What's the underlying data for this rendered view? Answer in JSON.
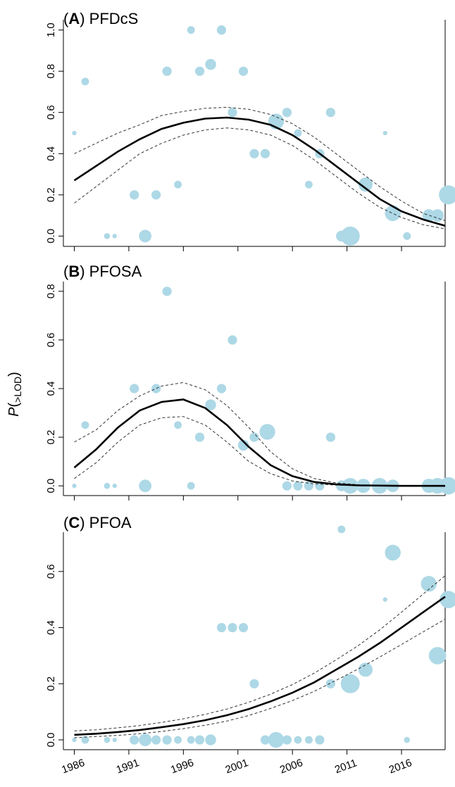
{
  "style": {
    "point_color": "#add8e6",
    "curve_color": "#000000",
    "ci_color": "#333333"
  },
  "shared_ylabel": {
    "main": "P",
    "open": "(",
    "sub": ">LOD",
    "close": ")"
  },
  "chart_data": [
    {
      "type": "scatter",
      "panel_letter": "A",
      "title": "PFDcS",
      "xlim": [
        1985,
        2020
      ],
      "ylim": [
        -0.05,
        1.05
      ],
      "x_ticks": [
        1986,
        1991,
        1996,
        2001,
        2006,
        2011,
        2016
      ],
      "x_tick_labels_shown": false,
      "y_ticks": [
        0.0,
        0.2,
        0.4,
        0.6,
        0.8,
        1.0
      ],
      "y_tick_labels": [
        "0.0",
        "0.2",
        "0.4",
        "0.6",
        "0.8",
        "1.0"
      ],
      "points": [
        {
          "x": 1986,
          "y": 0.5,
          "size": 1
        },
        {
          "x": 1987,
          "y": 0.75,
          "size": 3
        },
        {
          "x": 1989,
          "y": 0.0,
          "size": 2
        },
        {
          "x": 1989.7,
          "y": 0.0,
          "size": 1
        },
        {
          "x": 1991.5,
          "y": 0.2,
          "size": 4
        },
        {
          "x": 1992.5,
          "y": 0.0,
          "size": 6
        },
        {
          "x": 1993.5,
          "y": 0.2,
          "size": 4
        },
        {
          "x": 1994.5,
          "y": 0.8,
          "size": 4
        },
        {
          "x": 1995.5,
          "y": 0.25,
          "size": 3
        },
        {
          "x": 1996.7,
          "y": 1.0,
          "size": 3
        },
        {
          "x": 1997.5,
          "y": 0.8,
          "size": 4
        },
        {
          "x": 1998.5,
          "y": 0.833,
          "size": 5
        },
        {
          "x": 1999.5,
          "y": 1.0,
          "size": 4
        },
        {
          "x": 2000.5,
          "y": 0.6,
          "size": 4
        },
        {
          "x": 2001.5,
          "y": 0.8,
          "size": 4
        },
        {
          "x": 2002.5,
          "y": 0.4,
          "size": 4
        },
        {
          "x": 2003.5,
          "y": 0.4,
          "size": 4
        },
        {
          "x": 2004.5,
          "y": 0.556,
          "size": 8
        },
        {
          "x": 2005.5,
          "y": 0.6,
          "size": 4
        },
        {
          "x": 2006.5,
          "y": 0.5,
          "size": 3
        },
        {
          "x": 2007.5,
          "y": 0.25,
          "size": 3
        },
        {
          "x": 2008.5,
          "y": 0.4,
          "size": 4
        },
        {
          "x": 2009.5,
          "y": 0.6,
          "size": 4
        },
        {
          "x": 2010.5,
          "y": 0.0,
          "size": 5
        },
        {
          "x": 2011.3,
          "y": 0.0,
          "size": 10
        },
        {
          "x": 2012.7,
          "y": 0.25,
          "size": 7
        },
        {
          "x": 2014.5,
          "y": 0.5,
          "size": 1
        },
        {
          "x": 2015.2,
          "y": 0.111,
          "size": 8
        },
        {
          "x": 2016.5,
          "y": 0.0,
          "size": 3
        },
        {
          "x": 2018.5,
          "y": 0.1,
          "size": 6
        },
        {
          "x": 2019.3,
          "y": 0.1,
          "size": 6
        },
        {
          "x": 2020.3,
          "y": 0.2,
          "size": 10
        }
      ],
      "fit": {
        "x": [
          1986,
          1988,
          1990,
          1992,
          1994,
          1996,
          1998,
          2000,
          2002,
          2004,
          2006,
          2008,
          2010,
          2012,
          2014,
          2016,
          2018,
          2020
        ],
        "y": [
          0.27,
          0.34,
          0.41,
          0.47,
          0.52,
          0.55,
          0.57,
          0.575,
          0.565,
          0.54,
          0.49,
          0.42,
          0.34,
          0.26,
          0.18,
          0.12,
          0.08,
          0.05
        ],
        "lower": [
          0.16,
          0.24,
          0.32,
          0.4,
          0.45,
          0.49,
          0.515,
          0.525,
          0.515,
          0.49,
          0.44,
          0.37,
          0.29,
          0.21,
          0.14,
          0.09,
          0.055,
          0.035
        ],
        "upper": [
          0.4,
          0.45,
          0.5,
          0.54,
          0.585,
          0.605,
          0.62,
          0.625,
          0.615,
          0.59,
          0.545,
          0.48,
          0.4,
          0.32,
          0.24,
          0.17,
          0.11,
          0.075
        ]
      }
    },
    {
      "type": "scatter",
      "panel_letter": "B",
      "title": "PFOSA",
      "xlim": [
        1985,
        2020
      ],
      "ylim": [
        -0.04,
        0.84
      ],
      "x_ticks": [
        1986,
        1991,
        1996,
        2001,
        2006,
        2011,
        2016
      ],
      "x_tick_labels_shown": false,
      "y_ticks": [
        0.0,
        0.2,
        0.4,
        0.6,
        0.8
      ],
      "y_tick_labels": [
        "0.0",
        "0.2",
        "0.4",
        "0.6",
        "0.8"
      ],
      "points": [
        {
          "x": 1986,
          "y": 0.0,
          "size": 1
        },
        {
          "x": 1987,
          "y": 0.25,
          "size": 3
        },
        {
          "x": 1989,
          "y": 0.0,
          "size": 2
        },
        {
          "x": 1989.7,
          "y": 0.0,
          "size": 1
        },
        {
          "x": 1991.5,
          "y": 0.4,
          "size": 4
        },
        {
          "x": 1992.5,
          "y": 0.0,
          "size": 6
        },
        {
          "x": 1993.5,
          "y": 0.4,
          "size": 4
        },
        {
          "x": 1994.5,
          "y": 0.8,
          "size": 4
        },
        {
          "x": 1995.5,
          "y": 0.25,
          "size": 3
        },
        {
          "x": 1996.7,
          "y": 0.0,
          "size": 3
        },
        {
          "x": 1997.5,
          "y": 0.2,
          "size": 4
        },
        {
          "x": 1998.5,
          "y": 0.333,
          "size": 5
        },
        {
          "x": 1999.5,
          "y": 0.4,
          "size": 4
        },
        {
          "x": 2000.5,
          "y": 0.6,
          "size": 4
        },
        {
          "x": 2001.5,
          "y": 0.167,
          "size": 5
        },
        {
          "x": 2002.5,
          "y": 0.2,
          "size": 4
        },
        {
          "x": 2003.7,
          "y": 0.222,
          "size": 8
        },
        {
          "x": 2005.5,
          "y": 0.0,
          "size": 4
        },
        {
          "x": 2006.5,
          "y": 0.0,
          "size": 4
        },
        {
          "x": 2007.5,
          "y": 0.0,
          "size": 4
        },
        {
          "x": 2008.5,
          "y": 0.0,
          "size": 4
        },
        {
          "x": 2009.5,
          "y": 0.2,
          "size": 4
        },
        {
          "x": 2010.5,
          "y": 0.0,
          "size": 5
        },
        {
          "x": 2011.3,
          "y": 0.0,
          "size": 8
        },
        {
          "x": 2012.5,
          "y": 0.0,
          "size": 7
        },
        {
          "x": 2014,
          "y": 0.0,
          "size": 8
        },
        {
          "x": 2015.2,
          "y": 0.0,
          "size": 6
        },
        {
          "x": 2018.5,
          "y": 0.0,
          "size": 7
        },
        {
          "x": 2019.3,
          "y": 0.0,
          "size": 8
        },
        {
          "x": 2020.3,
          "y": 0.0,
          "size": 9
        }
      ],
      "fit": {
        "x": [
          1986,
          1988,
          1990,
          1992,
          1994,
          1996,
          1998,
          2000,
          2002,
          2004,
          2006,
          2008,
          2010,
          2012,
          2014,
          2016,
          2018,
          2020
        ],
        "y": [
          0.075,
          0.15,
          0.24,
          0.31,
          0.345,
          0.355,
          0.32,
          0.25,
          0.16,
          0.085,
          0.04,
          0.016,
          0.006,
          0.002,
          0.001,
          0.0,
          0.0,
          0.0
        ],
        "lower": [
          0.03,
          0.095,
          0.18,
          0.25,
          0.28,
          0.285,
          0.25,
          0.18,
          0.1,
          0.05,
          0.02,
          0.008,
          0.003,
          0.001,
          0.0,
          0.0,
          0.0,
          0.0
        ],
        "upper": [
          0.18,
          0.23,
          0.31,
          0.37,
          0.41,
          0.425,
          0.395,
          0.33,
          0.24,
          0.14,
          0.07,
          0.03,
          0.012,
          0.005,
          0.002,
          0.001,
          0.0,
          0.0
        ]
      }
    },
    {
      "type": "scatter",
      "panel_letter": "C",
      "title": "PFOA",
      "xlim": [
        1985,
        2020
      ],
      "ylim": [
        -0.035,
        0.74
      ],
      "x_ticks": [
        1986,
        1991,
        1996,
        2001,
        2006,
        2011,
        2016
      ],
      "x_tick_labels_shown": true,
      "x_tick_labels": [
        "1986",
        "1991",
        "1996",
        "2001",
        "2006",
        "2011",
        "2016"
      ],
      "y_ticks": [
        0.0,
        0.2,
        0.4,
        0.6
      ],
      "y_tick_labels": [
        "0.0",
        "0.2",
        "0.4",
        "0.6"
      ],
      "points": [
        {
          "x": 1986,
          "y": 0.0,
          "size": 1
        },
        {
          "x": 1987,
          "y": 0.0,
          "size": 3
        },
        {
          "x": 1989,
          "y": 0.0,
          "size": 2
        },
        {
          "x": 1989.7,
          "y": 0.0,
          "size": 1
        },
        {
          "x": 1991.5,
          "y": 0.0,
          "size": 4
        },
        {
          "x": 1992.5,
          "y": 0.0,
          "size": 6
        },
        {
          "x": 1993.5,
          "y": 0.0,
          "size": 4
        },
        {
          "x": 1994.5,
          "y": 0.0,
          "size": 4
        },
        {
          "x": 1995.5,
          "y": 0.0,
          "size": 3
        },
        {
          "x": 1996.7,
          "y": 0.0,
          "size": 3
        },
        {
          "x": 1997.5,
          "y": 0.0,
          "size": 4
        },
        {
          "x": 1998.5,
          "y": 0.0,
          "size": 5
        },
        {
          "x": 1999.5,
          "y": 0.4,
          "size": 4
        },
        {
          "x": 2000.5,
          "y": 0.4,
          "size": 4
        },
        {
          "x": 2001.5,
          "y": 0.4,
          "size": 4
        },
        {
          "x": 2002.5,
          "y": 0.2,
          "size": 4
        },
        {
          "x": 2003.5,
          "y": 0.0,
          "size": 4
        },
        {
          "x": 2004.5,
          "y": 0.0,
          "size": 8
        },
        {
          "x": 2005.5,
          "y": 0.0,
          "size": 4
        },
        {
          "x": 2006.5,
          "y": 0.0,
          "size": 3
        },
        {
          "x": 2007.5,
          "y": 0.0,
          "size": 3
        },
        {
          "x": 2008.5,
          "y": 0.0,
          "size": 4
        },
        {
          "x": 2009.5,
          "y": 0.2,
          "size": 4
        },
        {
          "x": 2010.5,
          "y": 0.75,
          "size": 3
        },
        {
          "x": 2011.3,
          "y": 0.2,
          "size": 10
        },
        {
          "x": 2012.7,
          "y": 0.25,
          "size": 7
        },
        {
          "x": 2014.5,
          "y": 0.5,
          "size": 1
        },
        {
          "x": 2015.2,
          "y": 0.667,
          "size": 8
        },
        {
          "x": 2016.5,
          "y": 0.0,
          "size": 2
        },
        {
          "x": 2018.5,
          "y": 0.556,
          "size": 8
        },
        {
          "x": 2019.3,
          "y": 0.3,
          "size": 9
        },
        {
          "x": 2020.3,
          "y": 0.5,
          "size": 9
        }
      ],
      "fit": {
        "x": [
          1986,
          1988,
          1990,
          1992,
          1994,
          1996,
          1998,
          2000,
          2002,
          2004,
          2006,
          2008,
          2010,
          2012,
          2014,
          2016,
          2018,
          2020
        ],
        "y": [
          0.018,
          0.022,
          0.028,
          0.035,
          0.045,
          0.056,
          0.07,
          0.088,
          0.11,
          0.137,
          0.168,
          0.205,
          0.25,
          0.295,
          0.345,
          0.4,
          0.455,
          0.51
        ],
        "lower": [
          0.008,
          0.012,
          0.016,
          0.022,
          0.03,
          0.04,
          0.052,
          0.067,
          0.087,
          0.112,
          0.14,
          0.173,
          0.212,
          0.252,
          0.295,
          0.34,
          0.385,
          0.43
        ],
        "upper": [
          0.032,
          0.036,
          0.043,
          0.051,
          0.062,
          0.075,
          0.091,
          0.11,
          0.134,
          0.163,
          0.197,
          0.238,
          0.285,
          0.335,
          0.392,
          0.455,
          0.52,
          0.585
        ]
      }
    }
  ]
}
